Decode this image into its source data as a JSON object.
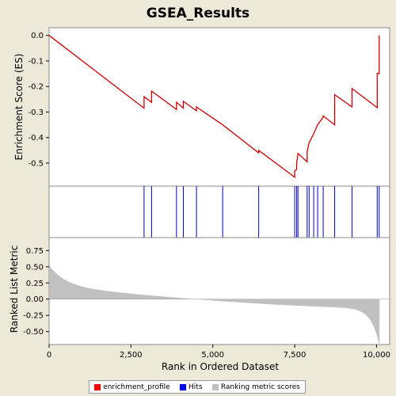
{
  "chart_data": {
    "type": "line",
    "title": "GSEA_Results",
    "xlabel": "Rank in Ordered Dataset",
    "xlim": [
      0,
      10400
    ],
    "xticks": [
      0,
      2500,
      5000,
      7500,
      10000
    ],
    "xtick_labels": [
      "0",
      "2,500",
      "5,000",
      "7,500",
      "10,000"
    ],
    "panels": {
      "es": {
        "ylabel": "Enrichment Score (ES)",
        "ylim": [
          -0.59,
          0.03
        ],
        "yticks": [
          0.0,
          -0.1,
          -0.2,
          -0.3,
          -0.4,
          -0.5
        ],
        "ytick_labels": [
          "0.0",
          "-0.1",
          "-0.2",
          "-0.3",
          "-0.4",
          "-0.5"
        ],
        "color": "#cc0000",
        "series": [
          {
            "name": "enrichment_profile",
            "x": [
              0,
              2900,
              2900,
              3130,
              3130,
              3890,
              3890,
              4100,
              4100,
              4500,
              4500,
              5300,
              5300,
              6400,
              6400,
              7500,
              7500,
              7560,
              7560,
              7600,
              7600,
              7880,
              7880,
              7940,
              7940,
              8080,
              8080,
              8200,
              8200,
              8370,
              8370,
              8720,
              8720,
              9250,
              9250,
              10020,
              10020,
              10080,
              10080
            ],
            "y": [
              0.0,
              -0.285,
              -0.24,
              -0.262,
              -0.218,
              -0.29,
              -0.262,
              -0.285,
              -0.258,
              -0.295,
              -0.28,
              -0.35,
              -0.35,
              -0.46,
              -0.45,
              -0.555,
              -0.53,
              -0.525,
              -0.5,
              -0.465,
              -0.462,
              -0.495,
              -0.455,
              -0.42,
              -0.42,
              -0.385,
              -0.385,
              -0.35,
              -0.35,
              -0.32,
              -0.315,
              -0.35,
              -0.232,
              -0.28,
              -0.208,
              -0.283,
              -0.148,
              -0.15,
              0.0
            ]
          }
        ]
      },
      "hits": {
        "color": "#0000cc",
        "x": [
          2900,
          3130,
          3890,
          4100,
          4500,
          5300,
          6400,
          7500,
          7560,
          7600,
          7880,
          7940,
          8080,
          8200,
          8370,
          8720,
          9250,
          10020,
          10080
        ]
      },
      "metric": {
        "ylabel": "Ranked List Metric",
        "ylim": [
          -0.7,
          0.95
        ],
        "yticks": [
          0.75,
          0.5,
          0.25,
          0.0,
          -0.25,
          -0.5
        ],
        "ytick_labels": [
          "0.75",
          "0.50",
          "0.25",
          "0.00",
          "-0.25",
          "-0.50"
        ],
        "color": "#c0c0c0",
        "n": 10090
      }
    },
    "legend": [
      {
        "name": "enrichment_profile",
        "color": "#ff0000"
      },
      {
        "name": "Hits",
        "color": "#0000ff"
      },
      {
        "name": "Ranking metric scores",
        "color": "#c0c0c0"
      }
    ]
  }
}
